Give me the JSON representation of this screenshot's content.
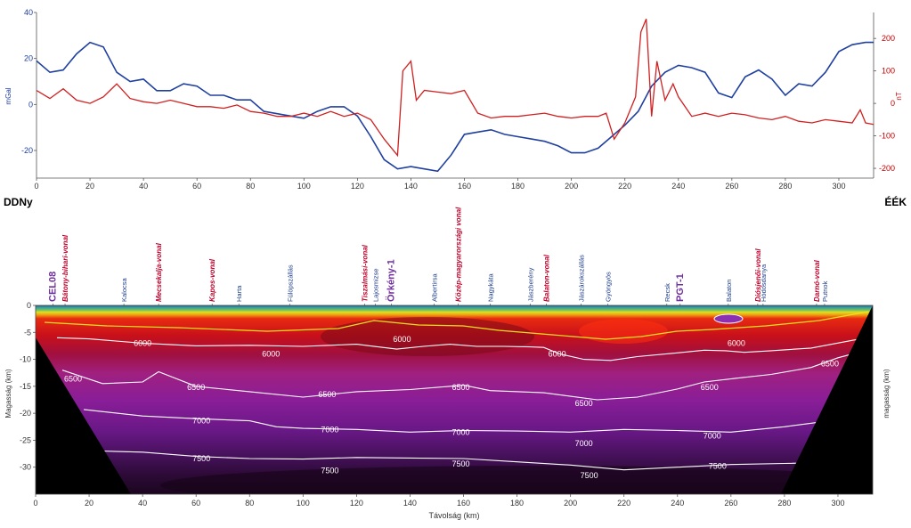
{
  "chart_data": [
    {
      "type": "line",
      "title": "",
      "xlabel": "",
      "ylabel_left": "mGal",
      "ylabel_right": "nT",
      "xlim": [
        0,
        313
      ],
      "ylim_left": [
        -32,
        40
      ],
      "ylim_right": [
        -230,
        280
      ],
      "xticks": [
        "0",
        "20",
        "40",
        "60",
        "80",
        "100",
        "120",
        "140",
        "160",
        "180",
        "200",
        "220",
        "240",
        "260",
        "280",
        "300"
      ],
      "yticks_left": [
        "-20",
        "0",
        "20",
        "40"
      ],
      "yticks_right": [
        "-200",
        "-100",
        "0",
        "100",
        "200"
      ],
      "end_labels": {
        "left": "DDNy",
        "right": "ÉÉK"
      },
      "series": [
        {
          "axis": "left",
          "color": "#2040a0",
          "x": [
            0,
            5,
            10,
            15,
            20,
            25,
            30,
            35,
            40,
            45,
            50,
            55,
            60,
            65,
            70,
            75,
            80,
            85,
            90,
            95,
            100,
            105,
            110,
            115,
            120,
            125,
            130,
            135,
            140,
            145,
            150,
            155,
            160,
            165,
            170,
            175,
            180,
            185,
            190,
            195,
            200,
            205,
            210,
            215,
            220,
            225,
            230,
            235,
            240,
            245,
            250,
            255,
            260,
            265,
            270,
            275,
            280,
            285,
            290,
            295,
            300,
            305,
            310,
            313
          ],
          "values": [
            19,
            14,
            15,
            22,
            27,
            25,
            14,
            10,
            11,
            6,
            6,
            9,
            8,
            4,
            4,
            2,
            2,
            -3,
            -4,
            -5,
            -6,
            -3,
            -1,
            -1,
            -5,
            -14,
            -24,
            -28,
            -27,
            -28,
            -29,
            -22,
            -13,
            -12,
            -11,
            -13,
            -14,
            -15,
            -16,
            -18,
            -21,
            -21,
            -19,
            -14,
            -9,
            -3,
            8,
            14,
            17,
            16,
            14,
            5,
            3,
            12,
            15,
            11,
            4,
            9,
            8,
            14,
            23,
            26,
            27,
            27
          ]
        },
        {
          "axis": "right",
          "color": "#d02020",
          "x": [
            0,
            5,
            10,
            15,
            20,
            25,
            30,
            35,
            40,
            45,
            50,
            55,
            60,
            65,
            70,
            75,
            80,
            85,
            90,
            95,
            100,
            105,
            110,
            115,
            120,
            125,
            130,
            135,
            137,
            140,
            142,
            145,
            150,
            155,
            160,
            165,
            170,
            175,
            180,
            185,
            190,
            195,
            200,
            205,
            210,
            213,
            216,
            220,
            224,
            226,
            228,
            230,
            232,
            235,
            238,
            240,
            245,
            250,
            255,
            260,
            265,
            270,
            275,
            280,
            285,
            290,
            295,
            300,
            305,
            308,
            310,
            313
          ],
          "values": [
            40,
            15,
            45,
            10,
            0,
            20,
            60,
            15,
            5,
            0,
            10,
            0,
            -10,
            -10,
            -15,
            -5,
            -25,
            -30,
            -40,
            -40,
            -30,
            -40,
            -25,
            -40,
            -30,
            -50,
            -110,
            -160,
            100,
            130,
            10,
            40,
            35,
            30,
            40,
            -30,
            -45,
            -40,
            -40,
            -35,
            -30,
            -40,
            -45,
            -40,
            -40,
            -30,
            -110,
            -60,
            20,
            220,
            260,
            -40,
            130,
            10,
            60,
            20,
            -40,
            -30,
            -40,
            -30,
            -35,
            -45,
            -50,
            -40,
            -55,
            -60,
            -50,
            -55,
            -60,
            -20,
            -60,
            -65
          ]
        }
      ]
    },
    {
      "type": "heatmap",
      "title": "",
      "xlabel": "Távolság (km)",
      "ylabel": "Magasság (km)",
      "ylabel_right": "magasság (km)",
      "xlim": [
        0,
        313
      ],
      "ylim": [
        -35,
        0
      ],
      "xticks": [
        "0",
        "20",
        "40",
        "60",
        "80",
        "100",
        "120",
        "140",
        "160",
        "180",
        "200",
        "220",
        "240",
        "260",
        "280",
        "300"
      ],
      "yticks": [
        "0",
        "-5",
        "-10",
        "-15",
        "-20",
        "-25",
        "-30"
      ],
      "colorscale": [
        "#2a0a2a",
        "#6a1a8a",
        "#b0209a",
        "#c0102a",
        "#e02010",
        "#f08010",
        "#f0e020",
        "#60c060",
        "#206080"
      ],
      "contours": [
        {
          "label": "6000",
          "x": [
            8,
            20,
            40,
            60,
            80,
            100,
            110,
            120,
            125,
            135,
            145,
            155,
            165,
            175,
            185,
            190,
            196,
            205,
            215,
            225,
            240,
            250,
            258,
            265,
            275,
            290,
            305,
            313
          ],
          "values": [
            -6,
            -6.2,
            -7,
            -7.5,
            -7.4,
            -7.6,
            -7.4,
            -7.2,
            -7.5,
            -8.1,
            -7.6,
            -7.2,
            -7.6,
            -7.6,
            -7.7,
            -7.8,
            -9,
            -10,
            -10.2,
            -9.5,
            -8.8,
            -8.3,
            -8.4,
            -8.7,
            -8.4,
            -7.9,
            -6.5,
            -5.8
          ],
          "label_positions": [
            [
              40,
              -7
            ],
            [
              88,
              -9
            ],
            [
              137,
              -6.3
            ],
            [
              195,
              -9
            ],
            [
              262,
              -7
            ]
          ]
        },
        {
          "label": "6500",
          "x": [
            10,
            25,
            40,
            46,
            60,
            80,
            100,
            120,
            140,
            160,
            170,
            190,
            210,
            225,
            240,
            250,
            262,
            275,
            290,
            300,
            313
          ],
          "values": [
            -12,
            -14.5,
            -14.2,
            -12.3,
            -15,
            -16,
            -17,
            -16,
            -15.6,
            -14.8,
            -15.8,
            -16.2,
            -17.5,
            -17,
            -15.5,
            -14.2,
            -13.5,
            -12.8,
            -11.5,
            -9.7,
            -8
          ],
          "label_positions": [
            [
              14,
              -13.6
            ],
            [
              60,
              -15.2
            ],
            [
              109,
              -16.5
            ],
            [
              159,
              -15.2
            ],
            [
              205,
              -18.2
            ],
            [
              252,
              -15.2
            ],
            [
              297,
              -10.8
            ]
          ]
        },
        {
          "label": "7000",
          "x": [
            18,
            40,
            60,
            80,
            90,
            100,
            120,
            140,
            160,
            180,
            200,
            220,
            240,
            260,
            280,
            300,
            313
          ],
          "values": [
            -19.3,
            -20.5,
            -21,
            -21.4,
            -22.5,
            -22.8,
            -23,
            -23.5,
            -23.2,
            -23.3,
            -23.5,
            -23,
            -23.2,
            -23.5,
            -22.5,
            -21.2,
            -20
          ],
          "label_positions": [
            [
              62,
              -21.4
            ],
            [
              110,
              -23
            ],
            [
              159,
              -23.5
            ],
            [
              205,
              -25.6
            ],
            [
              253,
              -24.2
            ]
          ]
        },
        {
          "label": "7500",
          "x": [
            24,
            40,
            60,
            80,
            100,
            120,
            140,
            160,
            180,
            200,
            220,
            240,
            260,
            280,
            313
          ],
          "values": [
            -27,
            -27.2,
            -28,
            -28.4,
            -28.5,
            -28.2,
            -28.3,
            -28.4,
            -29,
            -29.6,
            -30.5,
            -30,
            -29.5,
            -29.3,
            -29
          ],
          "label_positions": [
            [
              62,
              -28.4
            ],
            [
              110,
              -30.6
            ],
            [
              159,
              -29.4
            ],
            [
              207,
              -31.5
            ],
            [
              255,
              -29.8
            ]
          ]
        }
      ],
      "locations": [
        {
          "km": 6.5,
          "label": "CEL08",
          "style": "purple"
        },
        {
          "km": 11,
          "label": "Bátony-bihari-vonal",
          "style": "red"
        },
        {
          "km": 33,
          "label": "Kalocsa",
          "style": "blue"
        },
        {
          "km": 46,
          "label": "Mecsekalja-vonal",
          "style": "red"
        },
        {
          "km": 66,
          "label": "Kapos-vonal",
          "style": "red"
        },
        {
          "km": 76,
          "label": "Harta",
          "style": "blue"
        },
        {
          "km": 95,
          "label": "Fülöpszállás",
          "style": "blue"
        },
        {
          "km": 123,
          "label": "Tiszalmási-vonal",
          "style": "red"
        },
        {
          "km": 127,
          "label": "Lajosmizse",
          "style": "blue"
        },
        {
          "km": 133,
          "label": "Örkény-1",
          "style": "purple"
        },
        {
          "km": 149,
          "label": "Albertirsa",
          "style": "blue"
        },
        {
          "km": 158,
          "label": "Közép-magyarországi vonal",
          "style": "red"
        },
        {
          "km": 170,
          "label": "Nagykáta",
          "style": "blue"
        },
        {
          "km": 185,
          "label": "Jászberény",
          "style": "blue"
        },
        {
          "km": 191,
          "label": "Balaton-vonal",
          "style": "red"
        },
        {
          "km": 204,
          "label": "Jászárokszállás",
          "style": "blue"
        },
        {
          "km": 214,
          "label": "Gyöngyös",
          "style": "blue"
        },
        {
          "km": 236,
          "label": "Recsk",
          "style": "blue"
        },
        {
          "km": 241,
          "label": "PGT-1",
          "style": "purple"
        },
        {
          "km": 259,
          "label": "Balaton",
          "style": "blue"
        },
        {
          "km": 270,
          "label": "Diósjenői-vonal",
          "style": "red"
        },
        {
          "km": 272,
          "label": "Hódosdanya",
          "style": "blue"
        },
        {
          "km": 292,
          "label": "Darnó-vonal",
          "style": "red"
        },
        {
          "km": 295,
          "label": "Putnok",
          "style": "blue"
        }
      ]
    }
  ]
}
